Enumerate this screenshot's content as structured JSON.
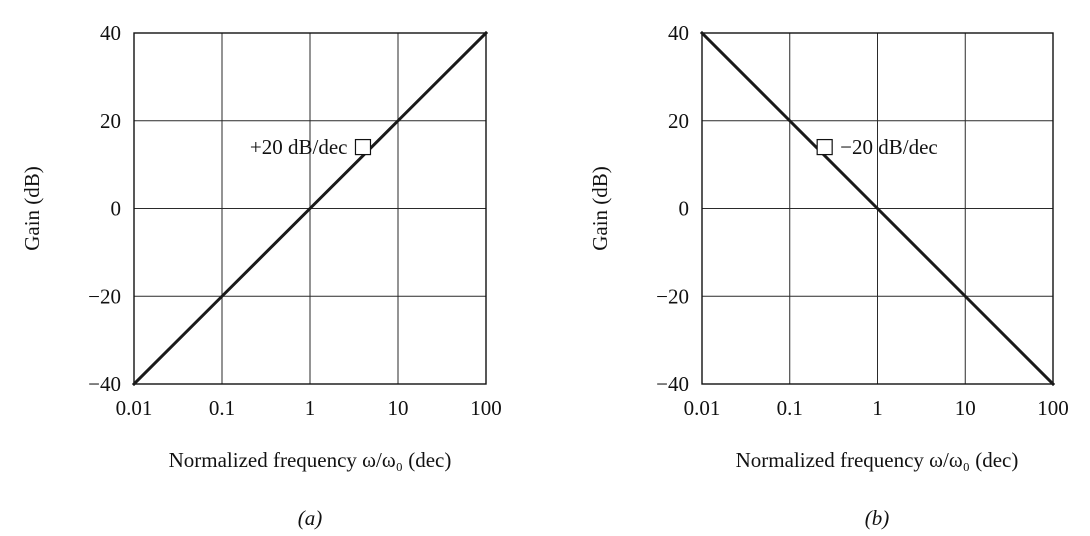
{
  "chart_data": [
    {
      "type": "line",
      "panel_label": "(a)",
      "xscale": "log",
      "xlim": [
        0.01,
        100
      ],
      "ylim": [
        -40,
        40
      ],
      "xticks": [
        0.01,
        0.1,
        1,
        10,
        100
      ],
      "xtick_labels": [
        "0.01",
        "0.1",
        "1",
        "10",
        "100"
      ],
      "yticks": [
        -40,
        -20,
        0,
        20,
        40
      ],
      "ytick_labels": [
        "−40",
        "−20",
        "0",
        "20",
        "40"
      ],
      "xlabel": "Normalized frequency ω/ω₀ (dec)",
      "ylabel": "Gain (dB)",
      "grid": true,
      "series": [
        {
          "name": "gain",
          "x": [
            0.01,
            0.1,
            1,
            10,
            100
          ],
          "y": [
            -40,
            -20,
            0,
            20,
            40
          ]
        }
      ],
      "annotation": {
        "text": "+20 dB/dec",
        "x": 4,
        "y": 14
      }
    },
    {
      "type": "line",
      "panel_label": "(b)",
      "xscale": "log",
      "xlim": [
        0.01,
        100
      ],
      "ylim": [
        -40,
        40
      ],
      "xticks": [
        0.01,
        0.1,
        1,
        10,
        100
      ],
      "xtick_labels": [
        "0.01",
        "0.1",
        "1",
        "10",
        "100"
      ],
      "yticks": [
        -40,
        -20,
        0,
        20,
        40
      ],
      "ytick_labels": [
        "−40",
        "−20",
        "0",
        "20",
        "40"
      ],
      "xlabel": "Normalized frequency ω/ω₀ (dec)",
      "ylabel": "Gain (dB)",
      "grid": true,
      "series": [
        {
          "name": "gain",
          "x": [
            0.01,
            0.1,
            1,
            10,
            100
          ],
          "y": [
            40,
            20,
            0,
            -20,
            -40
          ]
        }
      ],
      "annotation": {
        "text": "−20 dB/dec",
        "x": 0.25,
        "y": 14
      }
    }
  ]
}
